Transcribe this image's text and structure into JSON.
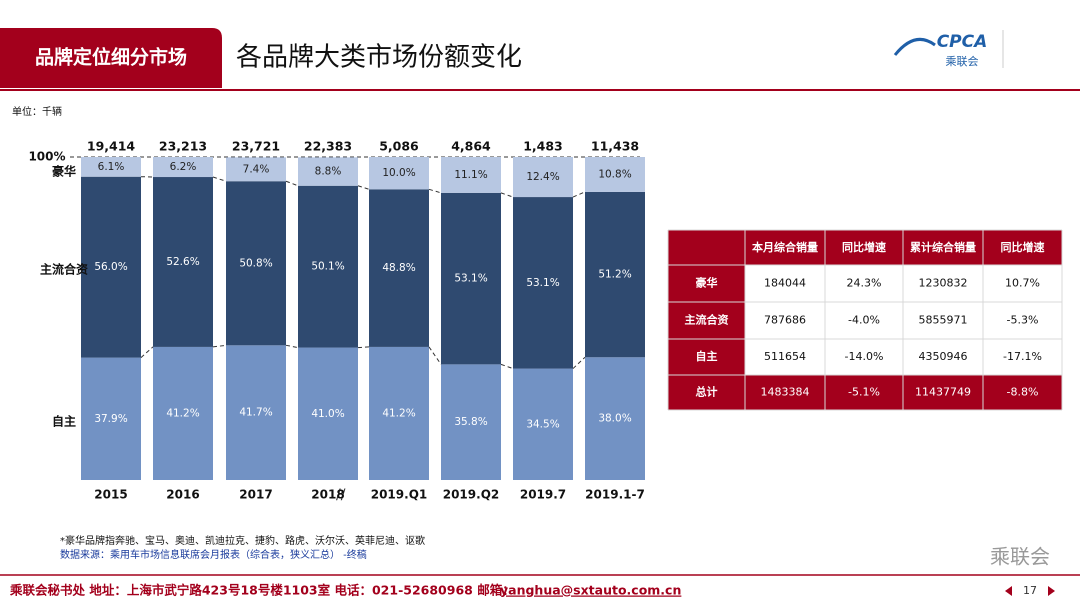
{
  "header": {
    "tag": "品牌定位细分市场",
    "title": "各品牌大类市场份额变化",
    "logo": "CPCA",
    "logo_sub": "乘联会"
  },
  "unit": "单位：千辆",
  "chart_data": {
    "type": "stacked_bar",
    "categories": [
      "2015",
      "2016",
      "2017",
      "2018",
      "2019.Q1",
      "2019.Q2",
      "2019.7",
      "2019.1-7"
    ],
    "ylim": [
      0,
      100
    ],
    "yticks": [
      {
        "value": 100,
        "label": "100%"
      }
    ],
    "totals": {
      "values": [
        19414,
        23213,
        23721,
        22383,
        5086,
        4864,
        1483,
        11438
      ],
      "value_labels": [
        "19,414",
        "23,213",
        "23,721",
        "22,383",
        "5,086",
        "4,864",
        "1,483",
        "11,438"
      ]
    },
    "series": [
      {
        "name": "自主",
        "color": "#7292c4",
        "values": [
          37.9,
          41.2,
          41.7,
          41.0,
          41.2,
          35.8,
          34.5,
          38.0
        ],
        "value_labels": [
          "37.9%",
          "41.2%",
          "41.7%",
          "41.0%",
          "41.2%",
          "35.8%",
          "34.5%",
          "38.0%"
        ]
      },
      {
        "name": "主流合资",
        "color": "#2f4a70",
        "values": [
          56.0,
          52.6,
          50.8,
          50.1,
          48.8,
          53.1,
          53.1,
          51.2
        ],
        "value_labels": [
          "56.0%",
          "52.6%",
          "50.8%",
          "50.1%",
          "48.8%",
          "53.1%",
          "53.1%",
          "51.2%"
        ]
      },
      {
        "name": "豪华",
        "color": "#b7c7e2",
        "values": [
          6.1,
          6.2,
          7.4,
          8.8,
          10.0,
          11.1,
          12.4,
          10.8
        ],
        "value_labels": [
          "6.1%",
          "6.2%",
          "7.4%",
          "8.8%",
          "10.0%",
          "11.1%",
          "12.4%",
          "10.8%"
        ]
      }
    ]
  },
  "table": {
    "header": [
      "本月综合销量",
      "同比增速",
      "累计综合销量",
      "同比增速"
    ],
    "rows": [
      [
        "豪华",
        "184044",
        "24.3%",
        "1230832",
        "10.7%"
      ],
      [
        "主流合资",
        "787686",
        "-4.0%",
        "5855971",
        "-5.3%"
      ],
      [
        "自主",
        "511654",
        "-14.0%",
        "4350946",
        "-17.1%"
      ],
      [
        "总计",
        "1483384",
        "-5.1%",
        "11437749",
        "-8.8%"
      ]
    ]
  },
  "notes": [
    "*豪华品牌指奔驰、宝马、奥迪、凯迪拉克、捷豹、路虎、沃尔沃、英菲尼迪、讴歌",
    "数据来源：乘用车市场信息联席会月报表（综合表，狭义汇总）  -终稿"
  ],
  "footer": {
    "address": "乘联会秘书处   地址：上海市武宁路423号18号楼1103室   电话：021-52680968   邮箱：",
    "email": "yanghua@sxtauto.com.cn",
    "page": "17",
    "watermark": "乘联会"
  }
}
